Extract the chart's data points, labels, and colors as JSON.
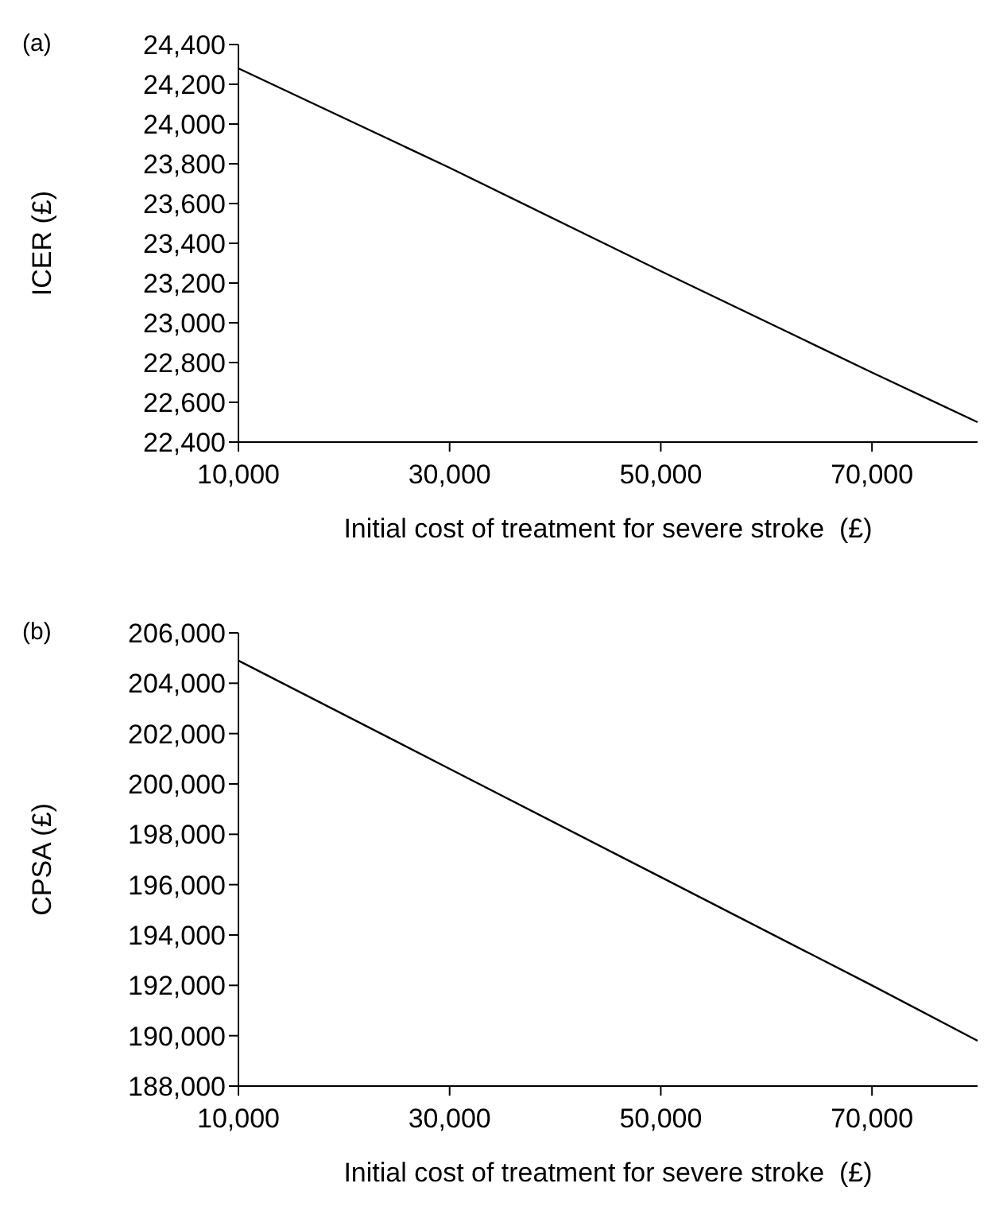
{
  "chart_data": [
    {
      "type": "line",
      "title": "(a)",
      "xlabel": "Initial cost of treatment for severe stroke  (£)",
      "ylabel": "ICER (£)",
      "series": [
        {
          "color": "#000000",
          "x": [
            10000,
            30000,
            50000,
            70000,
            80000
          ],
          "values": [
            24280,
            23780,
            23260,
            22750,
            22500
          ]
        }
      ],
      "xlim": [
        10000,
        80000
      ],
      "xticks": [
        {
          "value": 10000,
          "label": "10,000"
        },
        {
          "value": 30000,
          "label": "30,000"
        },
        {
          "value": 50000,
          "label": "50,000"
        },
        {
          "value": 70000,
          "label": "70,000"
        }
      ],
      "ylim": [
        22400,
        24400
      ],
      "yticks": [
        {
          "value": 22400,
          "label": "22,400"
        },
        {
          "value": 22600,
          "label": "22,600"
        },
        {
          "value": 22800,
          "label": "22,800"
        },
        {
          "value": 23000,
          "label": "23,000"
        },
        {
          "value": 23200,
          "label": "23,200"
        },
        {
          "value": 23400,
          "label": "23,400"
        },
        {
          "value": 23600,
          "label": "23,600"
        },
        {
          "value": 23800,
          "label": "23,800"
        },
        {
          "value": 24000,
          "label": "24,000"
        },
        {
          "value": 24200,
          "label": "24,200"
        },
        {
          "value": 24400,
          "label": "24,400"
        }
      ],
      "grid": false
    },
    {
      "type": "line",
      "title": "(b)",
      "xlabel": "Initial cost of treatment for severe stroke  (£)",
      "ylabel": "CPSA (£)",
      "series": [
        {
          "color": "#000000",
          "x": [
            10000,
            30000,
            50000,
            70000,
            80000
          ],
          "values": [
            204900,
            200600,
            196300,
            192000,
            189800
          ]
        }
      ],
      "xlim": [
        10000,
        80000
      ],
      "xticks": [
        {
          "value": 10000,
          "label": "10,000"
        },
        {
          "value": 30000,
          "label": "30,000"
        },
        {
          "value": 50000,
          "label": "50,000"
        },
        {
          "value": 70000,
          "label": "70,000"
        }
      ],
      "ylim": [
        188000,
        206000
      ],
      "yticks": [
        {
          "value": 188000,
          "label": "188,000"
        },
        {
          "value": 190000,
          "label": "190,000"
        },
        {
          "value": 192000,
          "label": "192,000"
        },
        {
          "value": 194000,
          "label": "194,000"
        },
        {
          "value": 196000,
          "label": "196,000"
        },
        {
          "value": 198000,
          "label": "198,000"
        },
        {
          "value": 200000,
          "label": "200,000"
        },
        {
          "value": 202000,
          "label": "202,000"
        },
        {
          "value": 204000,
          "label": "204,000"
        },
        {
          "value": 206000,
          "label": "206,000"
        }
      ],
      "grid": false
    }
  ]
}
